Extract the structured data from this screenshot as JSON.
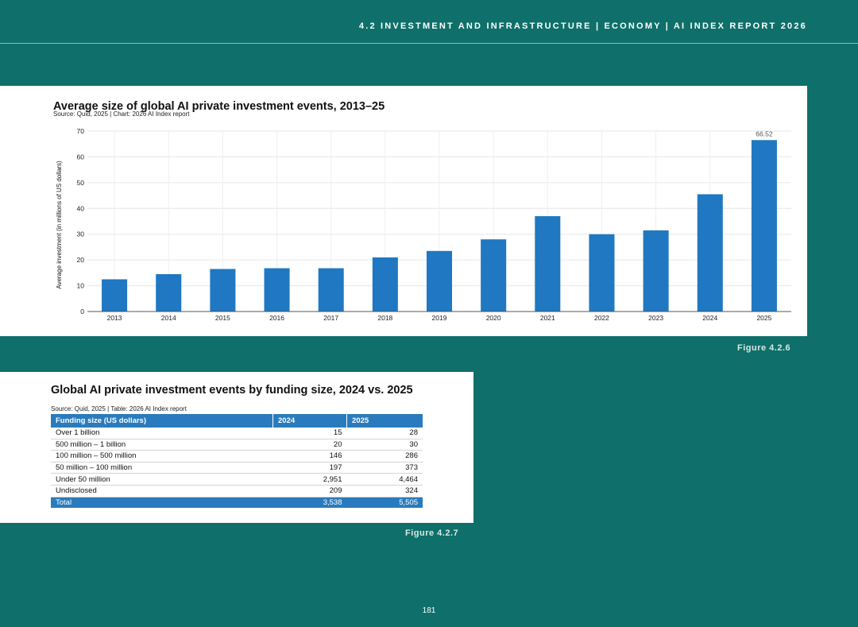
{
  "header": {
    "text": "4.2 INVESTMENT AND INFRASTRUCTURE  |  ECONOMY  |  AI INDEX REPORT 2026"
  },
  "figure1": {
    "title": "Average size of global AI private investment events, 2013–25",
    "source": "Source: Quid, 2025 | Chart: 2026 AI Index report",
    "label": "Figure 4.2.6"
  },
  "chart_data": {
    "type": "bar",
    "title": "Average size of global AI private investment events, 2013–25",
    "xlabel": "",
    "ylabel": "Average investment (in millions of US dollars)",
    "categories": [
      "2013",
      "2014",
      "2015",
      "2016",
      "2017",
      "2018",
      "2019",
      "2020",
      "2021",
      "2022",
      "2023",
      "2024",
      "2025"
    ],
    "values": [
      12.5,
      14.5,
      16.5,
      16.8,
      16.8,
      21,
      23.5,
      28,
      37,
      30,
      31.5,
      45.5,
      66.52
    ],
    "data_labels": [
      "",
      "",
      "",
      "",
      "",
      "",
      "",
      "",
      "",
      "",
      "",
      "",
      "66.52"
    ],
    "ylim": [
      0,
      70
    ],
    "yticks": [
      0,
      10,
      20,
      30,
      40,
      50,
      60,
      70
    ],
    "grid": true,
    "bar_color": "#1f78c1"
  },
  "figure2": {
    "title": "Global AI private investment events by funding size, 2024 vs. 2025",
    "source": "Source: Quid, 2025 | Table: 2026 AI Index report",
    "label": "Figure 4.2.7",
    "headers": [
      "Funding size (US dollars)",
      "2024",
      "2025"
    ],
    "rows": [
      [
        "Over 1 billion",
        "15",
        "28"
      ],
      [
        "500 million – 1 billion",
        "20",
        "30"
      ],
      [
        "100 million – 500 million",
        "146",
        "286"
      ],
      [
        "50 million – 100 million",
        "197",
        "373"
      ],
      [
        "Under 50 million",
        "2,951",
        "4,464"
      ],
      [
        "Undisclosed",
        "209",
        "324"
      ]
    ],
    "total": [
      "Total",
      "3,538",
      "5,505"
    ]
  },
  "page_number": "181",
  "colors": {
    "page_bg": "#0f6f6a",
    "accent": "#2a7bbd"
  }
}
